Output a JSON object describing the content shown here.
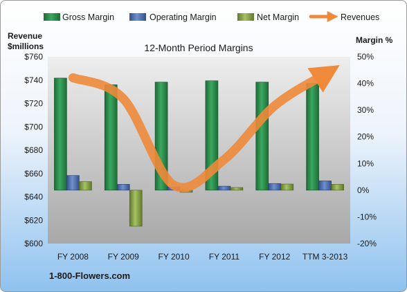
{
  "chart_data": {
    "type": "bar",
    "title": "12-Month Period Margins",
    "categories": [
      "FY 2008",
      "FY 2009",
      "FY 2010",
      "FY 2011",
      "FY 2012",
      "TTM 3-2013"
    ],
    "series": [
      {
        "name": "Gross Margin",
        "axis": "right",
        "type": "bar",
        "color": "#2e8b4a",
        "values": [
          42,
          39.5,
          40.5,
          41,
          40.5,
          40
        ]
      },
      {
        "name": "Operating Margin",
        "axis": "right",
        "type": "bar",
        "color": "#4f6fa8",
        "values": [
          5.5,
          2.2,
          1.2,
          1.5,
          2.5,
          3.5
        ]
      },
      {
        "name": "Net Margin",
        "axis": "right",
        "type": "bar",
        "color": "#8aa64a",
        "values": [
          3.2,
          -13.5,
          -0.8,
          1.0,
          2.3,
          2.2
        ]
      },
      {
        "name": "Revenues",
        "axis": "left",
        "type": "line",
        "color": "#ee8a3a",
        "values": [
          742,
          724,
          650,
          672,
          718,
          745
        ]
      }
    ],
    "left_axis": {
      "label_line1": "Revenue",
      "label_line2": "$millions",
      "range": [
        600,
        760
      ],
      "ticks": [
        "$600",
        "$620",
        "$640",
        "$660",
        "$680",
        "$700",
        "$720",
        "$740",
        "$760"
      ]
    },
    "right_axis": {
      "label": "Margin %",
      "range": [
        -20,
        50
      ],
      "ticks": [
        "-20%",
        "-10%",
        "0%",
        "10%",
        "20%",
        "30%",
        "40%",
        "50%"
      ]
    },
    "legend_position": "top",
    "grid": false
  },
  "footer": {
    "credit": "1-800-Flowers.com"
  },
  "colors": {
    "plot_top": "#ededed",
    "plot_bottom": "#a9a9a9"
  }
}
